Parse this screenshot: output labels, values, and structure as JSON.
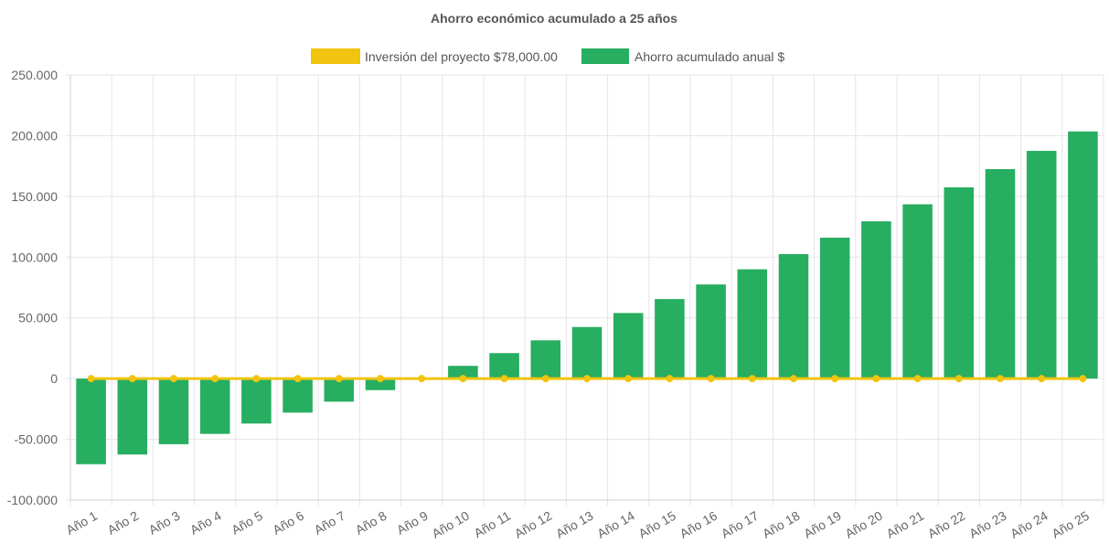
{
  "chart_data": {
    "type": "bar",
    "title": "Ahorro económico acumulado a 25 años",
    "categories": [
      "Año 1",
      "Año 2",
      "Año 3",
      "Año 4",
      "Año 5",
      "Año 6",
      "Año 7",
      "Año 8",
      "Año 9",
      "Año 10",
      "Año 11",
      "Año 12",
      "Año 13",
      "Año 14",
      "Año 15",
      "Año 16",
      "Año 17",
      "Año 18",
      "Año 19",
      "Año 20",
      "Año 21",
      "Año 22",
      "Año 23",
      "Año 24",
      "Año 25"
    ],
    "series": [
      {
        "name": "Inversión del proyecto $78,000.00",
        "type": "line",
        "color": "#f1c40f",
        "values": [
          0,
          0,
          0,
          0,
          0,
          0,
          0,
          0,
          0,
          0,
          0,
          0,
          0,
          0,
          0,
          0,
          0,
          0,
          0,
          0,
          0,
          0,
          0,
          0,
          0
        ]
      },
      {
        "name": "Ahorro acumulado anual $",
        "type": "bar",
        "color": "#27ae60",
        "values": [
          -70500,
          -62500,
          -54000,
          -45500,
          -37000,
          -28000,
          -19000,
          -9500,
          0,
          10500,
          21000,
          31500,
          42500,
          54000,
          65500,
          77500,
          90000,
          102500,
          116000,
          129500,
          143500,
          157500,
          172500,
          187500,
          203500
        ]
      }
    ],
    "yticks": [
      "-100.000",
      "-50.000",
      "0",
      "50.000",
      "100.000",
      "150.000",
      "200.000",
      "250.000"
    ],
    "ylim": [
      -100000,
      250000
    ],
    "xlabel": "",
    "ylabel": "",
    "legend": "top-center",
    "grid": true
  }
}
